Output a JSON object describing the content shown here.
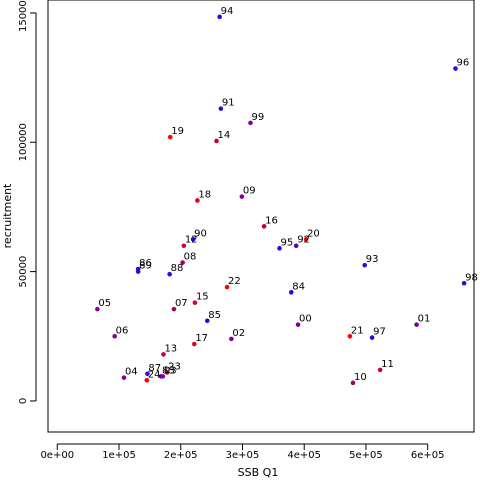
{
  "chart_data": {
    "type": "scatter",
    "xlabel": "SSB Q1",
    "ylabel": "recruitment",
    "xlim": [
      -15000,
      675000
    ],
    "ylim": [
      -12000,
      155000
    ],
    "x_ticks": [
      0,
      100000,
      200000,
      300000,
      400000,
      500000,
      600000
    ],
    "x_tick_labels": [
      "0e+00",
      "1e+05",
      "2e+05",
      "3e+05",
      "4e+05",
      "5e+05",
      "6e+05"
    ],
    "y_ticks": [
      0,
      50000,
      100000,
      150000
    ],
    "y_tick_labels": [
      "0",
      "50000",
      "100000",
      "150000"
    ],
    "grid": false,
    "points": [
      {
        "label": "94",
        "x": 263000,
        "y": 148500,
        "color": "#3a00e0"
      },
      {
        "label": "96",
        "x": 645000,
        "y": 128500,
        "color": "#3a00e0"
      },
      {
        "label": "91",
        "x": 265000,
        "y": 113000,
        "color": "#3a00e0"
      },
      {
        "label": "99",
        "x": 313000,
        "y": 107500,
        "color": "#7a00a0"
      },
      {
        "label": "19",
        "x": 183000,
        "y": 102000,
        "color": "#ff0000"
      },
      {
        "label": "14",
        "x": 258000,
        "y": 100500,
        "color": "#d0002f"
      },
      {
        "label": "18",
        "x": 227000,
        "y": 77500,
        "color": "#e00020"
      },
      {
        "label": "09",
        "x": 299000,
        "y": 79000,
        "color": "#8a0090"
      },
      {
        "label": "16",
        "x": 335000,
        "y": 67500,
        "color": "#c00040"
      },
      {
        "label": "20",
        "x": 403000,
        "y": 62500,
        "color": "#ff0000"
      },
      {
        "label": "92",
        "x": 387000,
        "y": 60000,
        "color": "#5000c0"
      },
      {
        "label": "95",
        "x": 360000,
        "y": 59000,
        "color": "#3a00e0"
      },
      {
        "label": "90",
        "x": 220000,
        "y": 62500,
        "color": "#3a00e0"
      },
      {
        "label": "12",
        "x": 205000,
        "y": 60000,
        "color": "#d0002f"
      },
      {
        "label": "86",
        "x": 131000,
        "y": 51000,
        "color": "#3a00e0"
      },
      {
        "label": "89",
        "x": 131000,
        "y": 50000,
        "color": "#3a00e0"
      },
      {
        "label": "08",
        "x": 203000,
        "y": 53500,
        "color": "#a00060"
      },
      {
        "label": "88",
        "x": 182000,
        "y": 49000,
        "color": "#3a00e0"
      },
      {
        "label": "93",
        "x": 498000,
        "y": 52500,
        "color": "#3a00e0"
      },
      {
        "label": "98",
        "x": 659000,
        "y": 45500,
        "color": "#3a00e0"
      },
      {
        "label": "22",
        "x": 275000,
        "y": 44000,
        "color": "#ff0000"
      },
      {
        "label": "84",
        "x": 379000,
        "y": 42000,
        "color": "#3a00e0"
      },
      {
        "label": "05",
        "x": 65000,
        "y": 35500,
        "color": "#8a0090"
      },
      {
        "label": "07",
        "x": 189000,
        "y": 35500,
        "color": "#a00060"
      },
      {
        "label": "15",
        "x": 223000,
        "y": 38000,
        "color": "#d0002f"
      },
      {
        "label": "85",
        "x": 243000,
        "y": 31000,
        "color": "#3a00e0"
      },
      {
        "label": "00",
        "x": 390000,
        "y": 29500,
        "color": "#7a00a0"
      },
      {
        "label": "01",
        "x": 582000,
        "y": 29500,
        "color": "#7a00a0"
      },
      {
        "label": "06",
        "x": 93000,
        "y": 25000,
        "color": "#8a0090"
      },
      {
        "label": "02",
        "x": 282000,
        "y": 24000,
        "color": "#8a0090"
      },
      {
        "label": "17",
        "x": 222000,
        "y": 22000,
        "color": "#e00020"
      },
      {
        "label": "21",
        "x": 474000,
        "y": 25000,
        "color": "#ff0000"
      },
      {
        "label": "97",
        "x": 510000,
        "y": 24500,
        "color": "#3a00e0"
      },
      {
        "label": "13",
        "x": 172000,
        "y": 18000,
        "color": "#d0002f"
      },
      {
        "label": "11",
        "x": 523000,
        "y": 12000,
        "color": "#c00040"
      },
      {
        "label": "87",
        "x": 146000,
        "y": 10500,
        "color": "#3a00e0"
      },
      {
        "label": "23",
        "x": 178000,
        "y": 11000,
        "color": "#ff0000"
      },
      {
        "label": "83",
        "x": 168000,
        "y": 9500,
        "color": "#3a00e0"
      },
      {
        "label": "03",
        "x": 171000,
        "y": 9500,
        "color": "#8a0090"
      },
      {
        "label": "04",
        "x": 108000,
        "y": 9000,
        "color": "#8a0090"
      },
      {
        "label": "24",
        "x": 145000,
        "y": 8000,
        "color": "#ff0000"
      },
      {
        "label": "10",
        "x": 479000,
        "y": 7000,
        "color": "#a00060"
      }
    ]
  }
}
